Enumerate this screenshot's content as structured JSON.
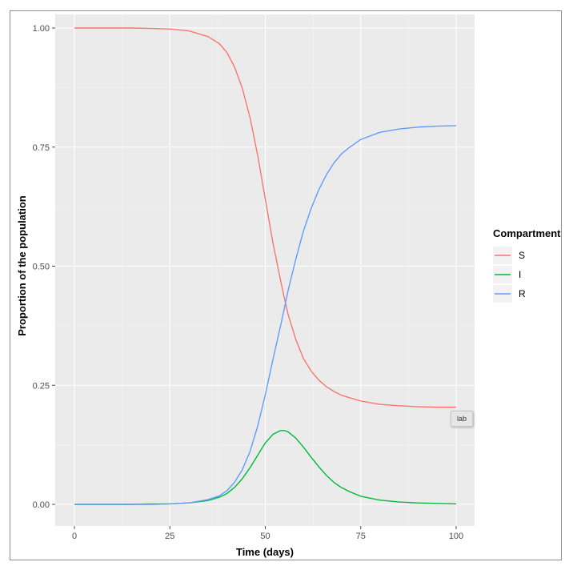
{
  "chart_data": {
    "type": "line",
    "title": "",
    "xlabel": "Time (days)",
    "ylabel": "Proportion of the population",
    "xlim": [
      0,
      100
    ],
    "ylim": [
      0,
      1
    ],
    "x_ticks": [
      0,
      25,
      50,
      75,
      100
    ],
    "y_ticks": [
      0.0,
      0.25,
      0.5,
      0.75,
      1.0
    ],
    "x_tick_labels": [
      "0",
      "25",
      "50",
      "75",
      "100"
    ],
    "y_tick_labels": [
      "0.00",
      "0.25",
      "0.50",
      "0.75",
      "1.00"
    ],
    "grid": true,
    "legend": {
      "title": "Compartment",
      "placement": "right"
    },
    "x": [
      0,
      5,
      10,
      15,
      20,
      25,
      30,
      35,
      38,
      40,
      42,
      44,
      46,
      48,
      50,
      52,
      54,
      55,
      56,
      58,
      60,
      62,
      64,
      66,
      68,
      70,
      72,
      75,
      80,
      85,
      90,
      95,
      100
    ],
    "series": [
      {
        "name": "S",
        "color": "#F8766D",
        "values": [
          1.0,
          1.0,
          1.0,
          1.0,
          0.999,
          0.998,
          0.994,
          0.982,
          0.967,
          0.948,
          0.917,
          0.873,
          0.812,
          0.733,
          0.641,
          0.549,
          0.47,
          0.433,
          0.398,
          0.346,
          0.306,
          0.28,
          0.261,
          0.247,
          0.237,
          0.229,
          0.224,
          0.217,
          0.21,
          0.207,
          0.205,
          0.204,
          0.204
        ]
      },
      {
        "name": "I",
        "color": "#00BA38",
        "values": [
          0.0,
          0.0,
          0.0,
          0.0,
          0.001,
          0.001,
          0.003,
          0.008,
          0.015,
          0.023,
          0.036,
          0.054,
          0.077,
          0.103,
          0.129,
          0.147,
          0.155,
          0.155,
          0.152,
          0.139,
          0.12,
          0.099,
          0.079,
          0.061,
          0.046,
          0.035,
          0.027,
          0.017,
          0.009,
          0.005,
          0.003,
          0.002,
          0.001
        ]
      },
      {
        "name": "R",
        "color": "#619CFF",
        "values": [
          0.0,
          0.0,
          0.0,
          0.0,
          0.0,
          0.001,
          0.003,
          0.01,
          0.018,
          0.029,
          0.047,
          0.073,
          0.111,
          0.164,
          0.23,
          0.304,
          0.375,
          0.412,
          0.45,
          0.515,
          0.574,
          0.621,
          0.66,
          0.692,
          0.717,
          0.736,
          0.749,
          0.766,
          0.781,
          0.788,
          0.792,
          0.794,
          0.795
        ]
      }
    ],
    "annotation": "lab"
  }
}
